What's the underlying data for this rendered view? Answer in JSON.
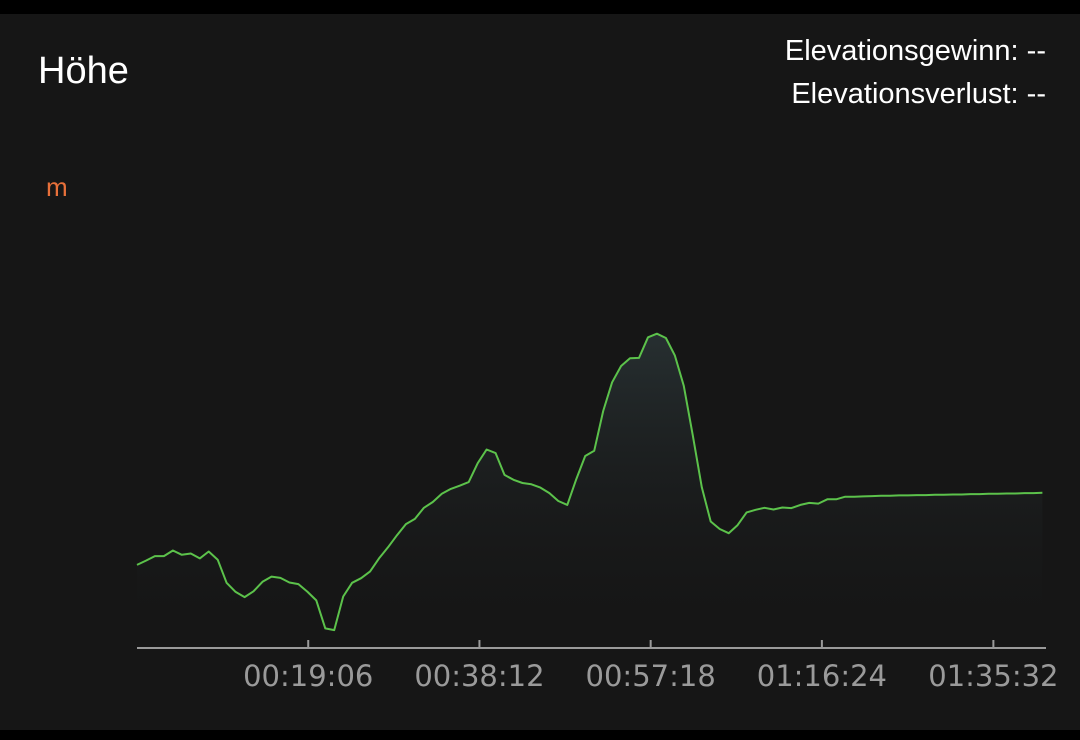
{
  "header": {
    "title": "Höhe",
    "elevation_gain": "Elevationsgewinn: --",
    "elevation_loss": "Elevationsverlust: --"
  },
  "colors": {
    "background": "#161616",
    "line": "#5cc24b",
    "unit": "#e8703a",
    "axis": "#9a9a9a",
    "text": "#ffffff"
  },
  "chart_data": {
    "type": "area",
    "ylabel": "m",
    "xlabel": "",
    "x_tick_labels": [
      "00:19:06",
      "00:38:12",
      "00:57:18",
      "01:16:24",
      "01:35:32"
    ],
    "x_tick_minutes": [
      19.1,
      38.2,
      57.3,
      76.4,
      95.53
    ],
    "xlim": [
      0,
      101.4
    ],
    "ylim": [
      0,
      100
    ],
    "y_note": "relative elevation (no y tick labels shown)",
    "grid": false,
    "legend": "none",
    "series": [
      {
        "x": [
          0,
          1,
          2,
          3,
          4,
          5,
          6,
          7,
          8,
          9,
          10,
          11,
          12,
          13,
          14,
          15,
          16,
          17,
          18,
          19,
          20,
          21,
          22,
          23,
          24,
          25,
          26,
          27,
          28,
          29,
          30,
          31,
          32,
          33,
          34,
          35,
          36,
          37,
          38,
          39,
          40,
          41,
          42,
          43,
          44,
          45,
          46,
          47,
          48,
          49,
          50,
          51,
          52,
          53,
          54,
          55,
          56,
          57,
          58,
          59,
          60,
          61,
          62,
          63,
          64,
          65,
          66,
          67,
          68,
          69,
          70,
          71,
          72,
          73,
          74,
          75,
          76,
          77,
          78,
          79,
          80,
          81,
          82,
          83,
          84,
          85,
          86,
          87,
          88,
          89,
          90,
          91,
          92,
          93,
          94,
          95,
          96,
          97,
          98,
          99,
          100,
          101
        ],
        "values": [
          25.5,
          26.8,
          28.2,
          28.2,
          29.9,
          28.6,
          29.0,
          27.5,
          29.6,
          27.1,
          20.0,
          17.2,
          15.6,
          17.4,
          20.3,
          21.9,
          21.5,
          20.1,
          19.6,
          17.3,
          14.6,
          6.0,
          5.5,
          15.8,
          20.0,
          21.4,
          23.5,
          27.5,
          30.9,
          34.6,
          38.0,
          39.6,
          43.0,
          44.8,
          47.3,
          48.8,
          49.8,
          50.9,
          56.7,
          60.9,
          59.8,
          53.1,
          51.6,
          50.6,
          50.2,
          49.2,
          47.5,
          45.1,
          43.9,
          51.8,
          58.9,
          60.5,
          72.7,
          81.5,
          86.5,
          88.9,
          89.0,
          95.3,
          96.4,
          95.1,
          89.7,
          80.4,
          65.2,
          49.3,
          38.8,
          36.5,
          35.2,
          37.7,
          41.6,
          42.4,
          43.0,
          42.5,
          43.1,
          42.9,
          43.9,
          44.5,
          44.3,
          45.6,
          45.6,
          46.4,
          46.4,
          46.5,
          46.6,
          46.7,
          46.7,
          46.8,
          46.8,
          46.9,
          46.9,
          47.0,
          47.0,
          47.1,
          47.1,
          47.2,
          47.2,
          47.3,
          47.3,
          47.4,
          47.4,
          47.5,
          47.5,
          47.6
        ]
      }
    ]
  }
}
